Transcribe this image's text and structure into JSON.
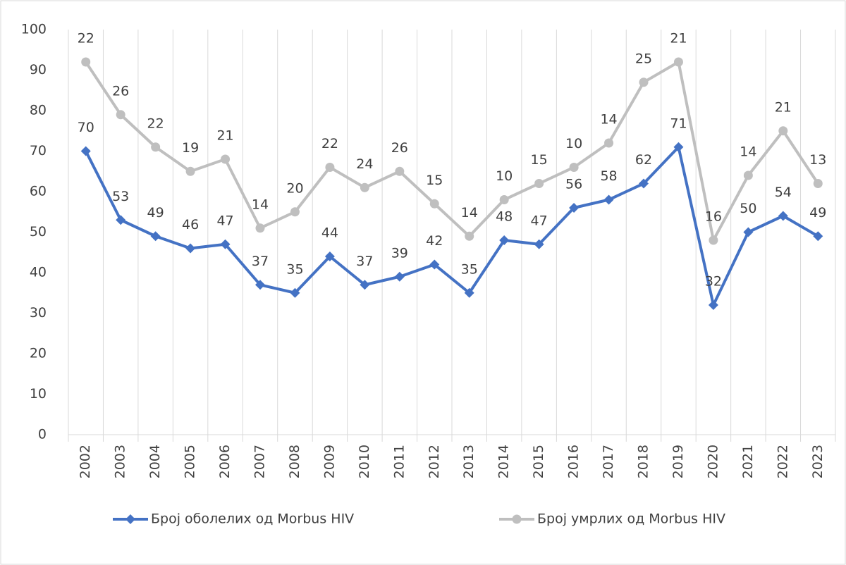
{
  "chart_data": {
    "type": "line",
    "stacked": true,
    "categories": [
      "2002",
      "2003",
      "2004",
      "2005",
      "2006",
      "2007",
      "2008",
      "2009",
      "2010",
      "2011",
      "2012",
      "2013",
      "2014",
      "2015",
      "2016",
      "2017",
      "2018",
      "2019",
      "2020",
      "2021",
      "2022",
      "2023"
    ],
    "series": [
      {
        "name": "Број оболелих од Morbus HIV",
        "color": "#4472c4",
        "marker": "diamond",
        "values": [
          70,
          53,
          49,
          46,
          47,
          37,
          35,
          44,
          37,
          39,
          42,
          35,
          48,
          47,
          56,
          58,
          62,
          71,
          32,
          50,
          54,
          49
        ]
      },
      {
        "name": "Број умрлих од Morbus HIV",
        "color": "#bfbfbf",
        "marker": "circle",
        "values": [
          22,
          26,
          22,
          19,
          21,
          14,
          20,
          22,
          24,
          26,
          15,
          14,
          10,
          15,
          10,
          14,
          25,
          21,
          16,
          14,
          21,
          13
        ]
      }
    ],
    "ylim": [
      0,
      100
    ],
    "yticks": [
      0,
      10,
      20,
      30,
      40,
      50,
      60,
      70,
      80,
      90,
      100
    ],
    "grid": false,
    "legend": "bottom"
  }
}
